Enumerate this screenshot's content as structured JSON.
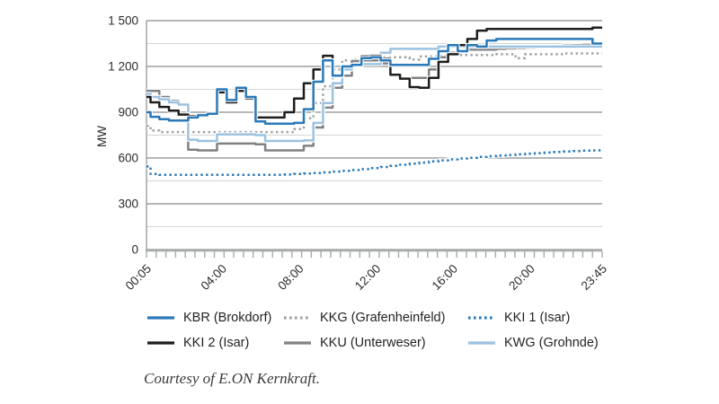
{
  "caption": "Courtesy of E.ON Kernkraft.",
  "chart_data": {
    "type": "line",
    "title": "",
    "xlabel": "",
    "ylabel": "MW",
    "ylim": [
      0,
      1500
    ],
    "yticks": [
      0,
      300,
      600,
      900,
      1200,
      1500
    ],
    "ytick_labels": [
      "0",
      "300",
      "600",
      "900",
      "1 200",
      "1 500"
    ],
    "minor_gridlines": [
      150,
      450,
      750,
      1050,
      1350
    ],
    "grid": "on",
    "legend_position": "bottom",
    "x_axis_minor_tick_count": 48,
    "xtick_minutes": [
      5,
      240,
      480,
      720,
      960,
      1200,
      1425
    ],
    "xtick_labels": [
      "00:05",
      "04:00",
      "08:00",
      "12:00",
      "16:00",
      "20:00",
      "23:45"
    ],
    "x_minutes": [
      5,
      30,
      60,
      90,
      120,
      150,
      180,
      210,
      240,
      270,
      300,
      330,
      360,
      390,
      420,
      450,
      480,
      510,
      540,
      570,
      600,
      630,
      660,
      690,
      720,
      750,
      780,
      810,
      840,
      870,
      900,
      930,
      960,
      990,
      1020,
      1050,
      1080,
      1110,
      1140,
      1170,
      1200,
      1230,
      1260,
      1290,
      1320,
      1350,
      1380,
      1410,
      1425
    ],
    "series": [
      {
        "name": "KBR (Brokdorf)",
        "style": "solid",
        "color": "#2a79b8",
        "values": [
          900,
          870,
          855,
          845,
          845,
          865,
          880,
          890,
          1050,
          980,
          1060,
          1000,
          840,
          825,
          825,
          825,
          830,
          920,
          1100,
          1240,
          1140,
          1200,
          1210,
          1255,
          1260,
          1240,
          1210,
          1210,
          1210,
          1210,
          1250,
          1300,
          1340,
          1300,
          1340,
          1330,
          1370,
          1380,
          1380,
          1380,
          1380,
          1380,
          1380,
          1380,
          1380,
          1380,
          1380,
          1350,
          1350
        ]
      },
      {
        "name": "KKG (Grafenheinfeld)",
        "style": "dotted",
        "color": "#9fa1a4",
        "values": [
          810,
          780,
          770,
          770,
          770,
          770,
          770,
          770,
          770,
          770,
          770,
          770,
          770,
          770,
          770,
          770,
          790,
          860,
          960,
          1070,
          1180,
          1240,
          1245,
          1250,
          1255,
          1260,
          1260,
          1260,
          1245,
          1265,
          1265,
          1270,
          1275,
          1275,
          1275,
          1275,
          1275,
          1280,
          1280,
          1255,
          1280,
          1280,
          1280,
          1280,
          1285,
          1285,
          1285,
          1285,
          1285
        ]
      },
      {
        "name": "KKI 1 (Isar)",
        "style": "dotted",
        "color": "#2a79b8",
        "values": [
          545,
          495,
          490,
          490,
          490,
          490,
          490,
          490,
          490,
          490,
          490,
          490,
          490,
          490,
          490,
          492,
          495,
          498,
          502,
          506,
          511,
          516,
          521,
          527,
          534,
          541,
          548,
          556,
          563,
          570,
          578,
          585,
          591,
          597,
          602,
          607,
          612,
          616,
          620,
          624,
          628,
          632,
          636,
          640,
          643,
          646,
          648,
          650,
          652
        ]
      },
      {
        "name": "KKI 2 (Isar)",
        "style": "solid",
        "color": "#1d1d1b",
        "values": [
          1000,
          965,
          935,
          910,
          885,
          875,
          880,
          890,
          1030,
          965,
          1040,
          990,
          865,
          865,
          865,
          900,
          990,
          1090,
          1180,
          1270,
          1135,
          1200,
          1205,
          1265,
          1270,
          1250,
          1145,
          1120,
          1065,
          1060,
          1125,
          1230,
          1280,
          1340,
          1380,
          1435,
          1445,
          1445,
          1445,
          1445,
          1445,
          1445,
          1445,
          1445,
          1445,
          1445,
          1445,
          1455,
          1455
        ]
      },
      {
        "name": "KKU (Unterweser)",
        "style": "solid",
        "color": "#7f8184",
        "values": [
          1040,
          1040,
          1000,
          975,
          945,
          655,
          650,
          650,
          695,
          695,
          695,
          695,
          690,
          650,
          650,
          650,
          650,
          680,
          800,
          930,
          1060,
          1140,
          1235,
          1240,
          1240,
          1220,
          1150,
          1125,
          1125,
          1125,
          1180,
          1260,
          1290,
          1300,
          1310,
          1310,
          1310,
          1315,
          1318,
          1320,
          1322,
          1325,
          1330,
          1334,
          1338,
          1340,
          1342,
          1345,
          1345
        ]
      },
      {
        "name": "KWG (Grohnde)",
        "style": "solid",
        "color": "#9cc2e0",
        "values": [
          1020,
          1000,
          985,
          965,
          950,
          720,
          712,
          712,
          755,
          755,
          755,
          755,
          750,
          712,
          712,
          712,
          712,
          715,
          830,
          960,
          1090,
          1180,
          1210,
          1215,
          1215,
          1290,
          1315,
          1315,
          1315,
          1315,
          1315,
          1330,
          1330,
          1330,
          1330,
          1330,
          1330,
          1330,
          1330,
          1330,
          1330,
          1330,
          1330,
          1330,
          1330,
          1330,
          1330,
          1330,
          1330
        ]
      }
    ]
  }
}
